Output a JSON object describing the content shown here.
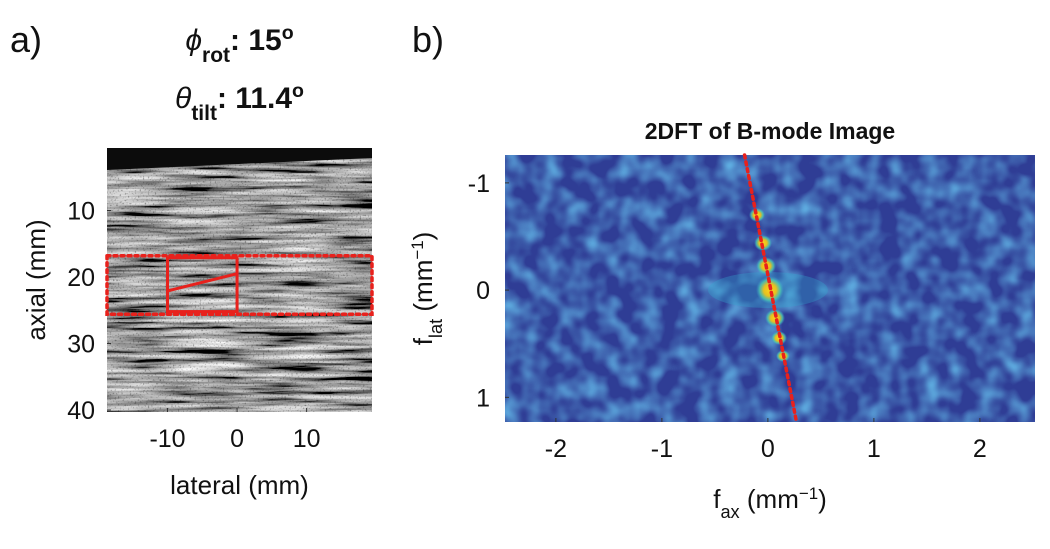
{
  "chart_data": [
    {
      "type": "image",
      "panel_label": "a)",
      "title_lines": [
        {
          "symbol": "ϕ",
          "sub": "rot",
          "text": ": 15",
          "sup": "o"
        },
        {
          "symbol": "θ",
          "sub": "tilt",
          "text": ": 11.4",
          "sup": "o"
        }
      ],
      "xlabel": "lateral (mm)",
      "ylabel": "axial (mm)",
      "xlim": [
        -18.7,
        19.4
      ],
      "xticks": [
        -10,
        0,
        10
      ],
      "ylim": [
        0.6,
        40.3
      ],
      "yticks": [
        10,
        20,
        30,
        40
      ],
      "y_reversed": true,
      "annotations": [
        {
          "kind": "rect",
          "x": [
            -10,
            0
          ],
          "y": [
            17.1,
            25.2
          ],
          "color": "#e8211c",
          "style": "solid"
        },
        {
          "kind": "line",
          "x": [
            -10,
            0
          ],
          "y": [
            22.1,
            19.5
          ],
          "color": "#e8211c",
          "style": "solid"
        },
        {
          "kind": "rect",
          "x": [
            -18.7,
            19.4
          ],
          "y": [
            16.8,
            25.6
          ],
          "color": "#e8211c",
          "style": "dotted"
        }
      ]
    },
    {
      "type": "image",
      "panel_label": "b)",
      "title": "2DFT of B-mode Image",
      "xlabel": {
        "base": "f",
        "sub": "ax",
        "unit": " (mm",
        "sup": "−1",
        "close": ")"
      },
      "ylabel": {
        "base": "f",
        "sub": "lat",
        "unit": " (mm",
        "sup": "−1",
        "close": ")"
      },
      "xlim": [
        -2.48,
        2.52
      ],
      "xticks": [
        -2,
        -1,
        0,
        1,
        2
      ],
      "ylim": [
        -1.26,
        1.23
      ],
      "yticks": [
        -1,
        0,
        1
      ],
      "y_reversed": true,
      "annotations": [
        {
          "kind": "line",
          "x": [
            -0.22,
            0.27
          ],
          "y": [
            -1.26,
            1.23
          ],
          "color": "#e8211c",
          "style": "dotted"
        }
      ]
    }
  ]
}
